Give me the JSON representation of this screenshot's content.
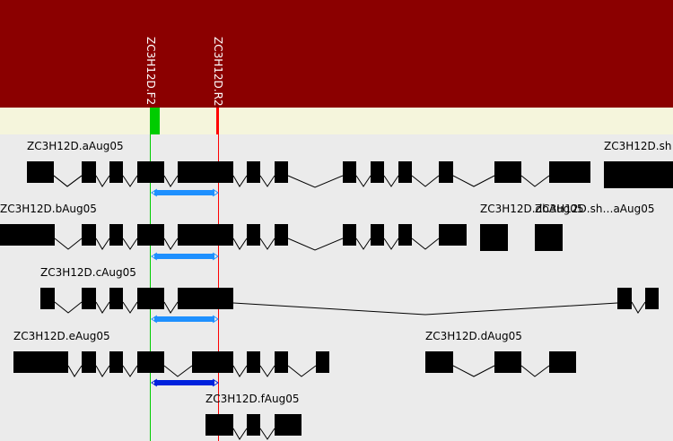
{
  "colors": {
    "header_bg": "#8b0000",
    "ruler_bg": "#f5f5dc",
    "track_bg": "#ebebeb",
    "primer_forward": "#00cc00",
    "primer_reverse": "#ff0000",
    "product_light": "#1e90ff",
    "product_dark": "#0022dd",
    "exon": "#000000"
  },
  "primers": [
    {
      "name": "ZC3H12D.F2",
      "type": "forward"
    },
    {
      "name": "ZC3H12D.R2",
      "type": "reverse"
    }
  ],
  "transcripts": [
    {
      "name": "ZC3H12D.aAug05"
    },
    {
      "name": "ZC3H12D.sh"
    },
    {
      "name": "ZC3H12D.bAug05"
    },
    {
      "name": "ZC3H12D.dbAug05"
    },
    {
      "name": "ZC3H12D.sh…aAug05"
    },
    {
      "name": "ZC3H12D.cAug05"
    },
    {
      "name": "ZC3H12D.eAug05"
    },
    {
      "name": "ZC3H12D.dAug05"
    },
    {
      "name": "ZC3H12D.fAug05"
    }
  ]
}
